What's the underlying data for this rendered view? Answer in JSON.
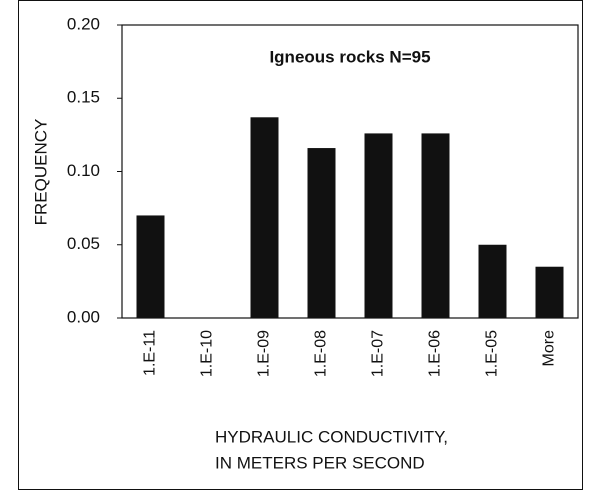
{
  "chart_data": {
    "type": "bar",
    "title": "Igneous rocks  N=95",
    "categories": [
      "1.E-11",
      "1.E-10",
      "1.E-09",
      "1.E-08",
      "1.E-07",
      "1.E-06",
      "1.E-05",
      "More"
    ],
    "values": [
      0.07,
      0,
      0.137,
      0.116,
      0.126,
      0.126,
      0.05,
      0.035
    ],
    "color": "#111111",
    "ylim": [
      0,
      0.2
    ],
    "yticks": [
      {
        "value": 0,
        "label": "0.00"
      },
      0.05,
      {
        "value": 0.1,
        "label": "0.10"
      },
      0.15,
      {
        "value": 0.2,
        "label": "0.20"
      }
    ],
    "y_label": "FREQUENCY",
    "x_label": [
      "HYDRAULIC CONDUCTIVITY,",
      "IN METERS PER SECOND"
    ],
    "grid": false
  }
}
